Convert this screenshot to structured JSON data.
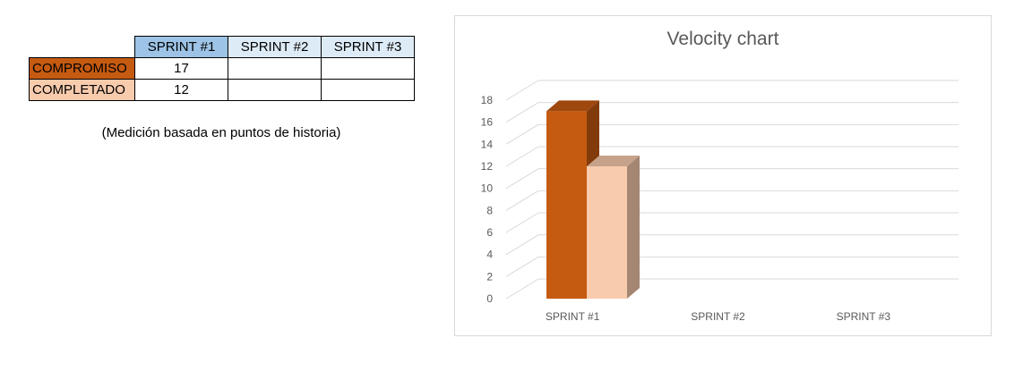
{
  "table": {
    "headers": [
      "SPRINT #1",
      "SPRINT #2",
      "SPRINT #3"
    ],
    "rows": [
      {
        "label": "COMPROMISO",
        "values": [
          "17",
          "",
          ""
        ]
      },
      {
        "label": "COMPLETADO",
        "values": [
          "12",
          "",
          ""
        ]
      }
    ]
  },
  "note": "(Medición basada en puntos de historia)",
  "chart_data": {
    "type": "bar",
    "title": "Velocity chart",
    "categories": [
      "SPRINT #1",
      "SPRINT #2",
      "SPRINT #3"
    ],
    "series": [
      {
        "name": "COMPROMISO",
        "values": [
          17,
          null,
          null
        ],
        "color": "#c55a11"
      },
      {
        "name": "COMPLETADO",
        "values": [
          12,
          null,
          null
        ],
        "color": "#f8cbad"
      }
    ],
    "ylim": [
      0,
      18
    ],
    "yticks": [
      0,
      2,
      4,
      6,
      8,
      10,
      12,
      14,
      16,
      18
    ],
    "grid": true,
    "style": "3d-column"
  }
}
